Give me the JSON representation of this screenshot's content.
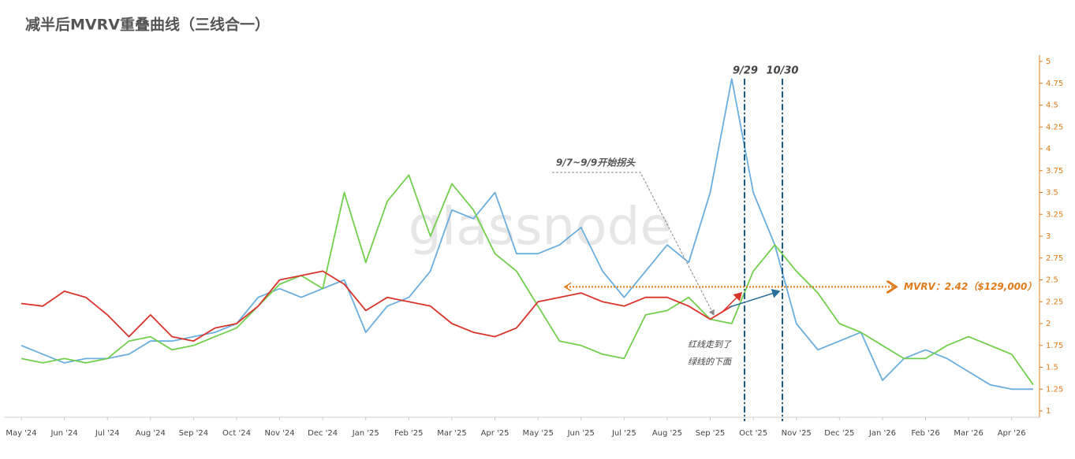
{
  "chart_data": {
    "type": "line",
    "title": "减半后MVRV重叠曲线（三线合一）",
    "watermark": "glassnode",
    "categories": [
      "May '24",
      null,
      "Jun '24",
      null,
      "Jul '24",
      null,
      "Aug '24",
      null,
      "Sep '24",
      null,
      "Oct '24",
      null,
      "Nov '24",
      null,
      "Dec '24",
      null,
      "Jan '25",
      null,
      "Feb '25",
      null,
      "Mar '25",
      null,
      "Apr '25",
      null,
      "May '25",
      null,
      "Jun '25",
      null,
      "Jul '25",
      null,
      "Aug '25",
      null,
      "Sep '25",
      null,
      "Oct '25",
      null,
      "Nov '25",
      null,
      "Dec '25",
      null,
      "Jan '26",
      null,
      "Feb '26",
      null,
      "Mar '26",
      null,
      "Apr '26",
      null
    ],
    "series": [
      {
        "color": "#d9342b",
        "values": [
          2.23,
          2.2,
          2.37,
          2.3,
          2.1,
          1.85,
          2.1,
          1.85,
          1.8,
          1.95,
          2.0,
          2.2,
          2.5,
          2.55,
          2.6,
          2.45,
          2.15,
          2.3,
          2.25,
          2.2,
          2.0,
          1.9,
          1.85,
          1.95,
          2.25,
          2.3,
          2.35,
          2.25,
          2.2,
          2.3,
          2.3,
          2.2,
          2.05,
          2.2,
          null,
          null,
          null,
          null,
          null,
          null,
          null,
          null,
          null,
          null,
          null,
          null,
          null,
          null
        ]
      },
      {
        "color": "#72cf4e",
        "values": [
          1.6,
          1.55,
          1.6,
          1.55,
          1.6,
          1.8,
          1.85,
          1.7,
          1.75,
          1.85,
          1.95,
          2.2,
          2.45,
          2.55,
          2.4,
          3.5,
          2.7,
          3.4,
          3.7,
          3.0,
          3.6,
          3.3,
          2.8,
          2.6,
          2.2,
          1.8,
          1.75,
          1.65,
          1.6,
          2.1,
          2.15,
          2.3,
          2.05,
          2.0,
          2.6,
          2.9,
          2.6,
          2.35,
          2.0,
          1.9,
          1.75,
          1.6,
          1.6,
          1.75,
          1.85,
          1.75,
          1.65,
          1.3
        ]
      },
      {
        "color": "#6aaee0",
        "values": [
          1.75,
          1.65,
          1.55,
          1.6,
          1.6,
          1.65,
          1.8,
          1.8,
          1.85,
          1.9,
          2.0,
          2.3,
          2.4,
          2.3,
          2.4,
          2.5,
          1.9,
          2.2,
          2.3,
          2.6,
          3.3,
          3.2,
          3.5,
          2.8,
          2.8,
          2.9,
          3.1,
          2.6,
          2.3,
          2.6,
          2.9,
          2.7,
          3.5,
          4.8,
          3.5,
          2.9,
          2.0,
          1.7,
          1.8,
          1.9,
          1.35,
          1.6,
          1.7,
          1.6,
          1.45,
          1.3,
          1.25,
          1.25
        ]
      }
    ],
    "ylim": [
      1,
      5
    ],
    "yticks": [
      1,
      1.25,
      1.5,
      1.75,
      2,
      2.25,
      2.5,
      2.75,
      3,
      3.25,
      3.5,
      3.75,
      4,
      4.25,
      4.5,
      4.75,
      5
    ],
    "reference_line": {
      "value": 2.42,
      "label": "MVRV：2.42（$129,000）"
    },
    "annotations": {
      "marker_1": "9/29",
      "marker_2": "10/30",
      "turn": "9/7~9/9开始拐头",
      "note_line_1": "红线走到了",
      "note_line_2": "绿线的下面"
    }
  }
}
